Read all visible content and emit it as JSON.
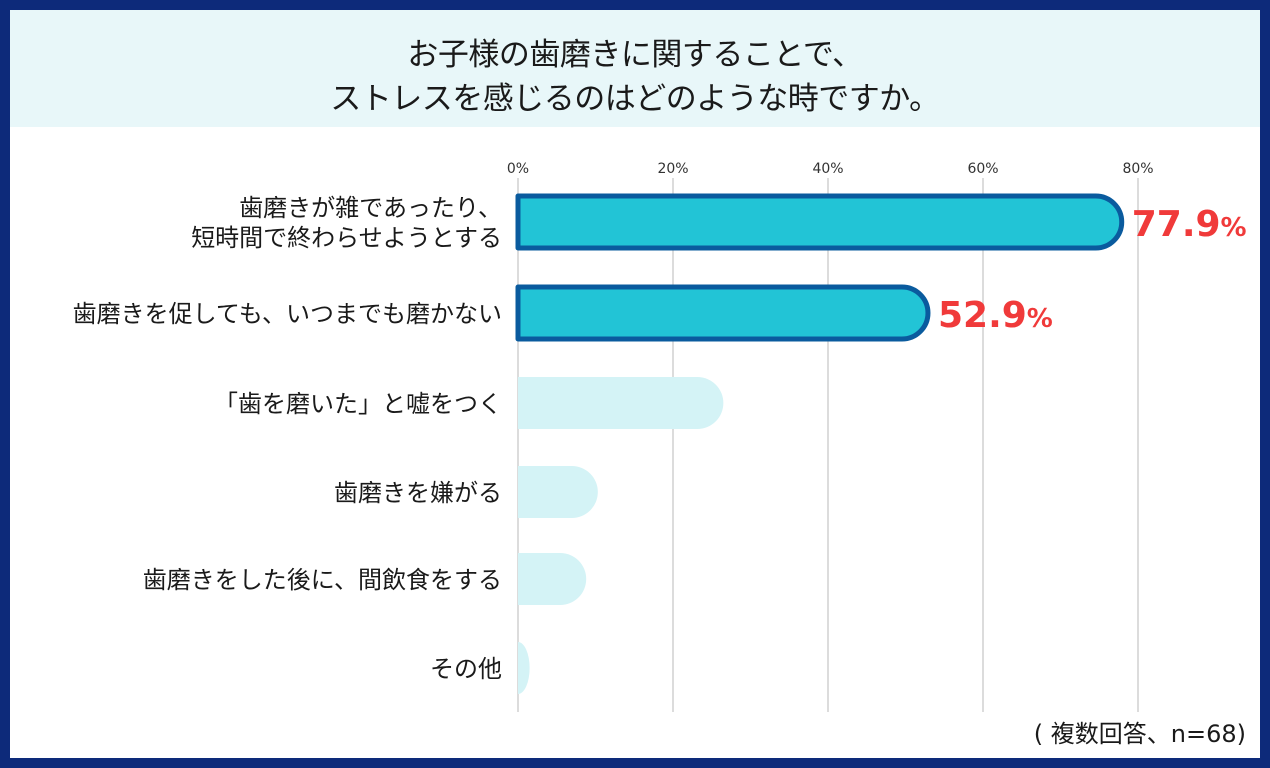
{
  "title": {
    "line1": "お子様の歯磨きに関することで、",
    "line2": "ストレスを感じるのはどのような時ですか。"
  },
  "note": "( 複数回答、n=68)",
  "colors": {
    "frame": "#0d2a7a",
    "title_band": "#e8f7f9",
    "highlight_fill": "#22c4d6",
    "highlight_stroke": "#0a5b9e",
    "bar_pale": "#d4f3f6",
    "value_label": "#f03a3a",
    "grid": "#d0d0d0"
  },
  "chart_data": {
    "type": "bar",
    "orientation": "horizontal",
    "categories": [
      [
        "歯磨きが雑であったり、",
        "短時間で終わらせようとする"
      ],
      [
        "歯磨きを促しても、いつまでも磨かない"
      ],
      [
        "「歯を磨いた」と嘘をつく"
      ],
      [
        "歯磨きを嫌がる"
      ],
      [
        "歯磨きをした後に、間飲食をする"
      ],
      [
        "その他"
      ]
    ],
    "values": [
      77.9,
      52.9,
      26.5,
      10.3,
      8.8,
      1.5
    ],
    "highlighted": [
      true,
      true,
      false,
      false,
      false,
      false
    ],
    "value_labels": [
      {
        "number": "77.9",
        "unit": "%"
      },
      {
        "number": "52.9",
        "unit": "%"
      },
      null,
      null,
      null,
      null
    ],
    "xlim": [
      0,
      90
    ],
    "xticks": [
      0,
      20,
      40,
      60,
      80
    ],
    "xtick_labels": [
      "0%",
      "20%",
      "40%",
      "60%",
      "80%"
    ],
    "grid": true
  }
}
